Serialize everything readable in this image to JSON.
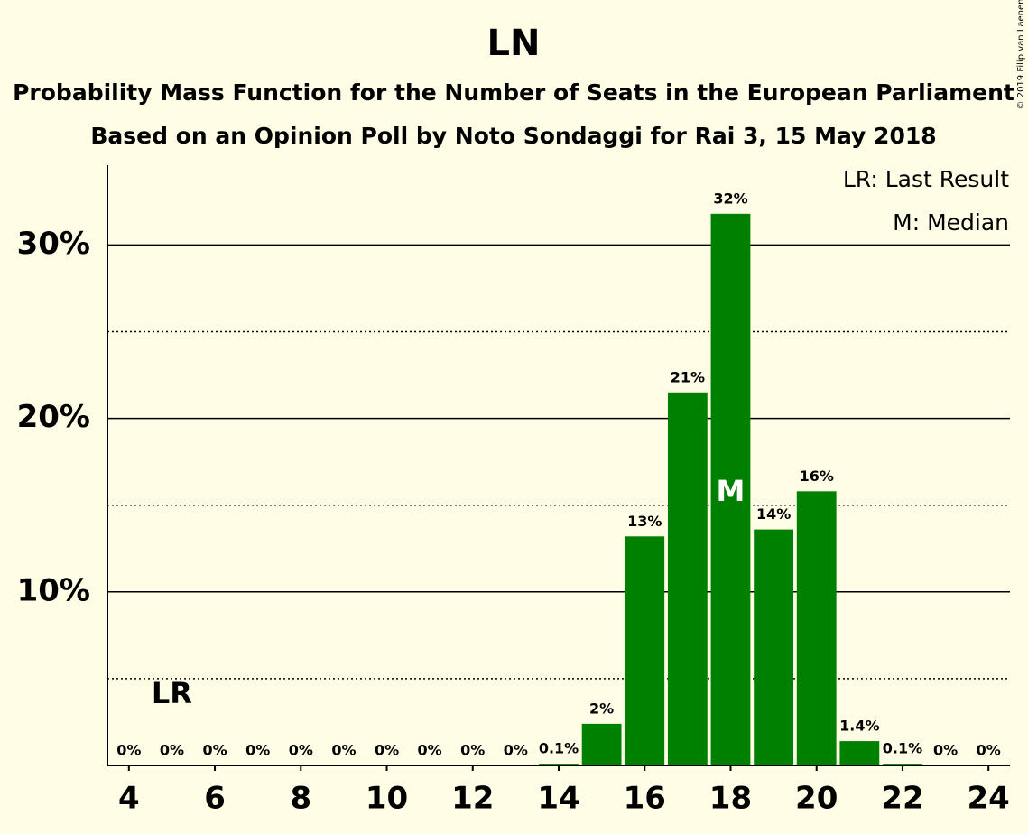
{
  "chart_data": {
    "type": "bar",
    "title": "LN",
    "subtitle": [
      "Probability Mass Function for the Number of Seats in the European Parliament",
      "Based on an Opinion Poll by Noto Sondaggi for Rai 3, 15 May 2018"
    ],
    "copyright": "© 2019 Filip van Laenen",
    "x": [
      4,
      5,
      6,
      7,
      8,
      9,
      10,
      11,
      12,
      13,
      14,
      15,
      16,
      17,
      18,
      19,
      20,
      21,
      22,
      23,
      24
    ],
    "values": [
      0,
      0,
      0,
      0,
      0,
      0,
      0,
      0,
      0,
      0,
      0.1,
      2.4,
      13.2,
      21.5,
      31.8,
      13.6,
      15.8,
      1.4,
      0.1,
      0,
      0
    ],
    "value_labels": [
      "0%",
      "0%",
      "0%",
      "0%",
      "0%",
      "0%",
      "0%",
      "0%",
      "0%",
      "0%",
      "0.1%",
      "2%",
      "13%",
      "21%",
      "32%",
      "14%",
      "16%",
      "1.4%",
      "0.1%",
      "0%",
      "0%"
    ],
    "color": "#008000",
    "xlim": [
      3.5,
      24.5
    ],
    "xticks": [
      4,
      6,
      8,
      10,
      12,
      14,
      16,
      18,
      20,
      22,
      24
    ],
    "ylim": [
      0,
      34.6
    ],
    "yticks": [
      {
        "value": 10,
        "label": "10%"
      },
      {
        "value": 20,
        "label": "20%"
      },
      {
        "value": 30,
        "label": "30%"
      }
    ],
    "yminor": [
      5,
      15,
      25
    ],
    "grid": true,
    "last_result": {
      "label": "LR",
      "x": 5
    },
    "median": {
      "label": "M",
      "x": 18
    },
    "legend": [
      "LR: Last Result",
      "M: Median"
    ]
  }
}
